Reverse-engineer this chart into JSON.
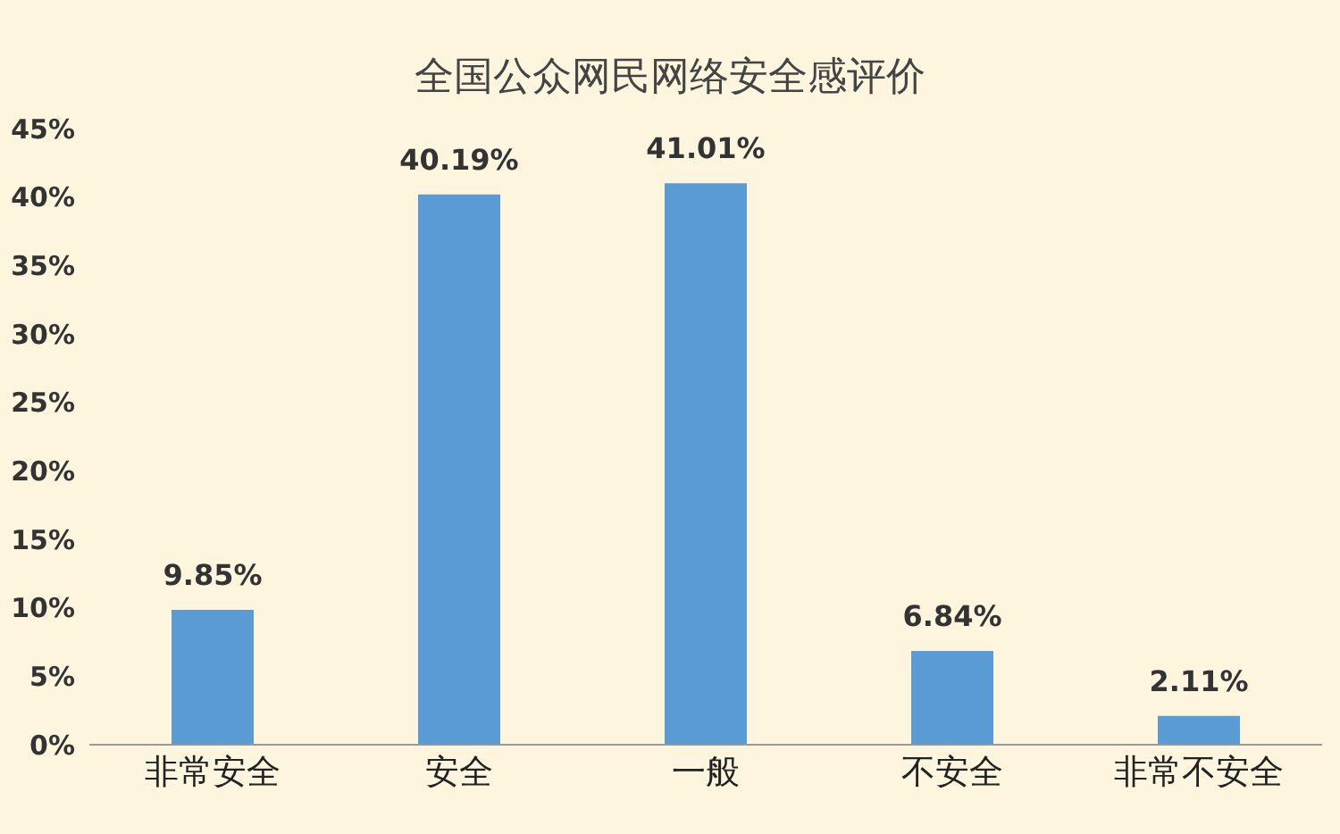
{
  "chart_data": {
    "type": "bar",
    "title": "全国公众网民网络安全感评价",
    "categories": [
      "非常安全",
      "安全",
      "一般",
      "不安全",
      "非常不安全"
    ],
    "values": [
      9.85,
      40.19,
      41.01,
      6.84,
      2.11
    ],
    "value_labels": [
      "9.85%",
      "40.19%",
      "41.01%",
      "6.84%",
      "2.11%"
    ],
    "color": "#5b9bd5",
    "ylim": [
      0,
      45
    ],
    "yticks": [
      {
        "value": 0,
        "label": "0%"
      },
      {
        "value": 5,
        "label": "5%"
      },
      {
        "value": 10,
        "label": "10%"
      },
      {
        "value": 15,
        "label": "15%"
      },
      {
        "value": 20,
        "label": "20%"
      },
      {
        "value": 25,
        "label": "25%"
      },
      {
        "value": 30,
        "label": "30%"
      },
      {
        "value": 35,
        "label": "35%"
      },
      {
        "value": 40,
        "label": "40%"
      },
      {
        "value": 45,
        "label": "45%"
      }
    ],
    "grid": false
  }
}
